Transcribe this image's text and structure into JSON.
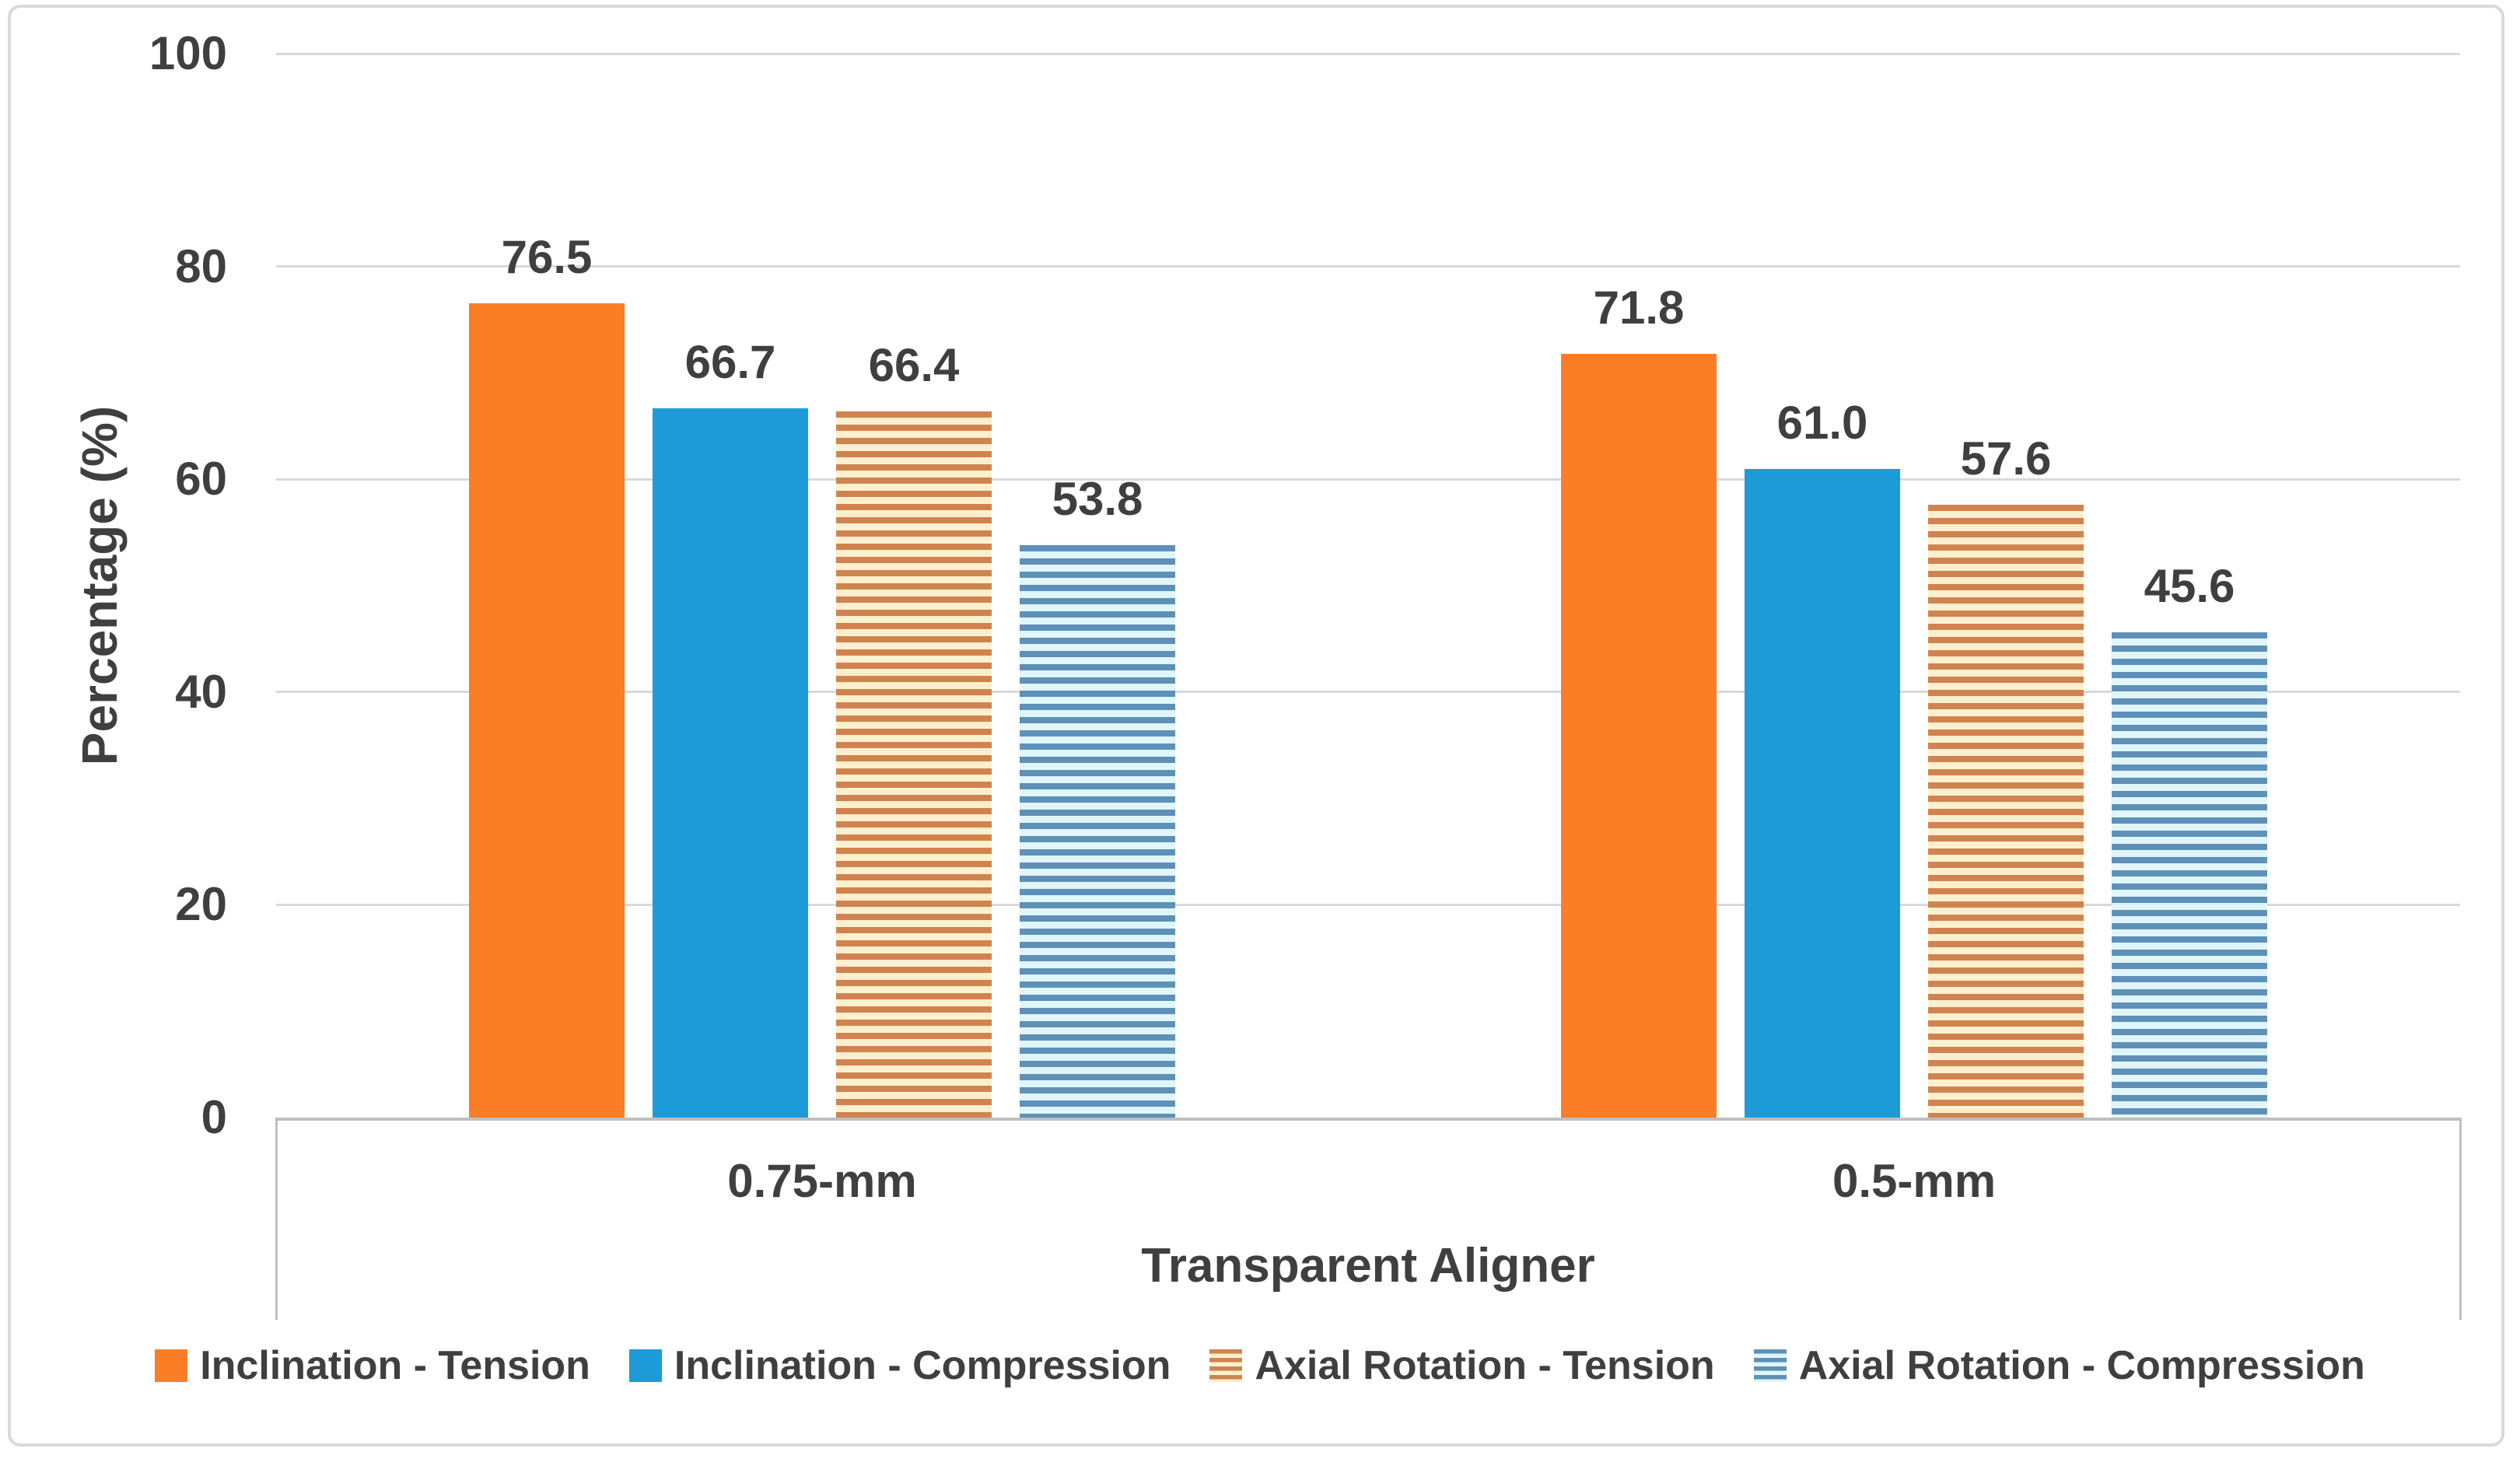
{
  "chart_data": {
    "type": "bar",
    "title": "",
    "xlabel": "Transparent Aligner",
    "ylabel": "Percentage (%)",
    "ylim": [
      0,
      100
    ],
    "yticks": [
      0,
      20,
      40,
      60,
      80,
      100
    ],
    "grid": true,
    "legend_position": "bottom",
    "categories": [
      "0.75-mm",
      "0.5-mm"
    ],
    "series": [
      {
        "name": "Inclination - Tension",
        "pattern": "solid",
        "color": "#FB7D26",
        "background": "#FB7D26",
        "values": [
          76.5,
          71.8
        ]
      },
      {
        "name": "Inclination - Compression",
        "pattern": "solid",
        "color": "#1C9BD8",
        "background": "#1C9BD8",
        "values": [
          66.7,
          61.0
        ]
      },
      {
        "name": "Axial Rotation - Tension",
        "pattern": "horizontal-stripes",
        "color": "#D0834F",
        "background": "#FDF0CE",
        "values": [
          66.4,
          57.6
        ]
      },
      {
        "name": "Axial Rotation - Compression",
        "pattern": "horizontal-stripes",
        "color": "#5E90B8",
        "background": "#E0F6FB",
        "values": [
          53.8,
          45.6
        ]
      }
    ],
    "data_label_decimals": 1
  },
  "style": {
    "text_color": "#3F3F3F",
    "grid_color": "#D9D9D9",
    "axis_color": "#BFBFBF",
    "figure_border_color": "#D9D9D9",
    "background": "#FFFFFF"
  }
}
